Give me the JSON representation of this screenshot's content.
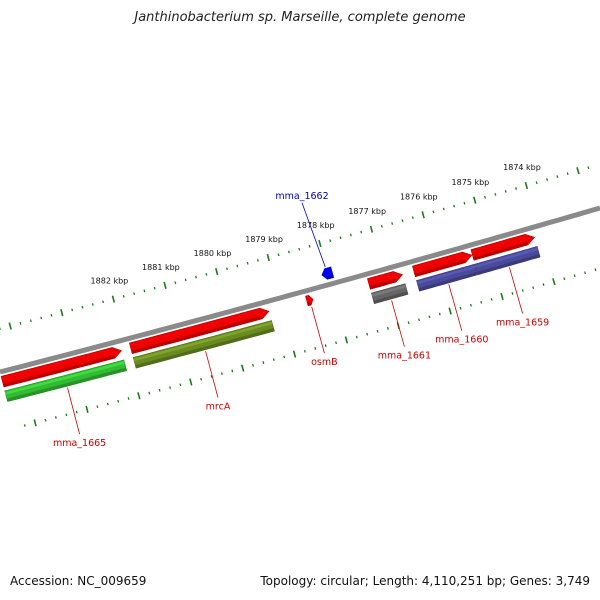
{
  "title": "Janthinobacterium sp. Marseille, complete genome",
  "footer": {
    "accession": "Accession: NC_009659",
    "summary": "Topology: circular; Length: 4,110,251 bp; Genes: 3,749"
  },
  "colors": {
    "backbone": "#8a8a8a",
    "ticks": "#1c7a1c",
    "label_red": "#cc0000",
    "label_blue": "#0000cc"
  },
  "chart_data": {
    "type": "genome-map",
    "topology": "circular",
    "unit": "kbp",
    "view_kbp": [
      1872.8,
      1884.4
    ],
    "outer_ticks": [
      {
        "kbp": 1874,
        "label": "1874 kbp"
      },
      {
        "kbp": 1875,
        "label": "1875 kbp"
      },
      {
        "kbp": 1876,
        "label": "1876 kbp"
      },
      {
        "kbp": 1877,
        "label": "1877 kbp"
      },
      {
        "kbp": 1878,
        "label": "1878 kbp"
      },
      {
        "kbp": 1879,
        "label": "1879 kbp"
      },
      {
        "kbp": 1880,
        "label": "1880 kbp"
      },
      {
        "kbp": 1881,
        "label": "1881 kbp"
      },
      {
        "kbp": 1882,
        "label": "1882 kbp"
      }
    ],
    "genes": [
      {
        "name": "mma_1659",
        "start_kbp": 1874.12,
        "end_kbp": 1875.32,
        "strand": "-",
        "orf_color": "#4a4a9a",
        "label_color": "#cc0000",
        "label_above": false
      },
      {
        "name": "mma_1660",
        "start_kbp": 1875.33,
        "end_kbp": 1876.45,
        "strand": "-",
        "orf_color": "#4a4a9a",
        "label_color": "#cc0000",
        "label_above": false
      },
      {
        "name": "mma_1661",
        "start_kbp": 1876.67,
        "end_kbp": 1877.32,
        "strand": "-",
        "orf_color": "#666666",
        "label_color": "#cc0000",
        "label_above": false
      },
      {
        "name": "mma_1662",
        "start_kbp": 1877.92,
        "end_kbp": 1878.12,
        "strand": "+",
        "orf_color": null,
        "label_color": "#0000cc",
        "label_above": true
      },
      {
        "name": "osmB",
        "start_kbp": 1878.4,
        "end_kbp": 1878.52,
        "strand": "-",
        "orf_color": null,
        "label_color": "#cc0000",
        "label_above": false
      },
      {
        "name": "mrcA",
        "start_kbp": 1879.25,
        "end_kbp": 1881.92,
        "strand": "-",
        "orf_color": "#6a8a22",
        "label_color": "#cc0000",
        "label_above": false
      },
      {
        "name": "mma_1665",
        "start_kbp": 1882.1,
        "end_kbp": 1884.4,
        "strand": "-",
        "orf_color": "#33bb33",
        "label_color": "#cc0000",
        "label_above": false
      }
    ]
  }
}
